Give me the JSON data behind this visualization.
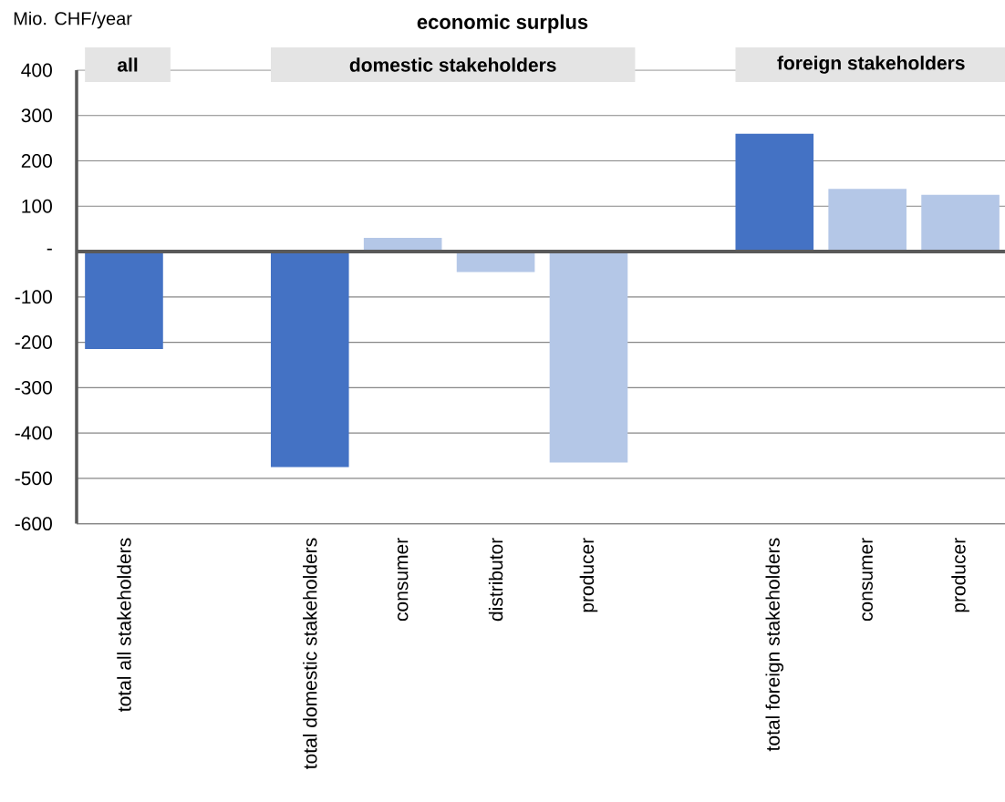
{
  "chart_data": {
    "type": "bar",
    "title": "economic surplus",
    "ylabel": "Mio. CHF/year",
    "categories": [
      "total all stakeholders",
      null,
      "total domestic stakeholders",
      "consumer",
      "distributor",
      "producer",
      null,
      "total foreign stakeholders",
      "consumer",
      "producer"
    ],
    "values": [
      -215,
      null,
      -475,
      30,
      -45,
      -465,
      null,
      260,
      138,
      125
    ],
    "colors": [
      "#4472c4",
      null,
      "#4472c4",
      "#b4c7e7",
      "#b4c7e7",
      "#b4c7e7",
      null,
      "#4472c4",
      "#b4c7e7",
      "#b4c7e7"
    ],
    "ylim": [
      -600,
      400
    ],
    "yticks": [
      -600,
      -500,
      -400,
      -300,
      -200,
      -100,
      {
        "value": 0,
        "label": "-"
      },
      100,
      200,
      300,
      400
    ],
    "grid": "y",
    "annotations": [
      "all",
      "domestic stakeholders",
      "foreign stakeholders"
    ]
  }
}
